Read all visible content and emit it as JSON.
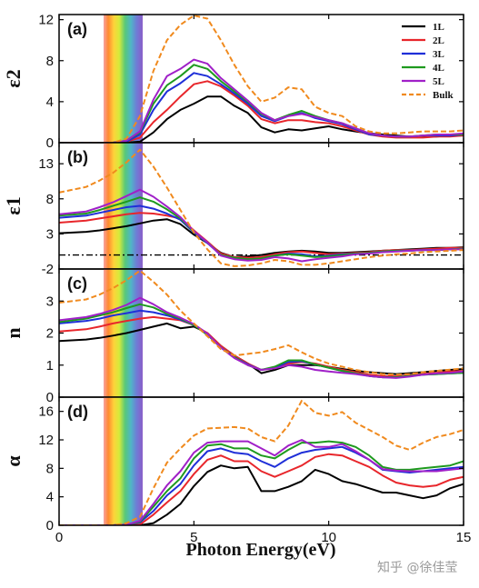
{
  "watermark": "知乎 @徐佳莹",
  "chart_data": {
    "type": "line",
    "xlabel": "Photon Energy(eV)",
    "xlim": [
      0,
      15
    ],
    "xticks": [
      0,
      5,
      10,
      15
    ],
    "visible_band_eV": [
      1.65,
      3.1
    ],
    "series_styles": [
      {
        "name": "1L",
        "color": "#000000",
        "dash": "solid"
      },
      {
        "name": "2L",
        "color": "#e8262b",
        "dash": "solid"
      },
      {
        "name": "3L",
        "color": "#1f2fd8",
        "dash": "solid"
      },
      {
        "name": "4L",
        "color": "#1e9a1e",
        "dash": "solid"
      },
      {
        "name": "5L",
        "color": "#a020c8",
        "dash": "solid"
      },
      {
        "name": "Bulk",
        "color": "#f08a1e",
        "dash": "dashed"
      }
    ],
    "legend_position": "top-right",
    "panels": [
      {
        "label": "(a)",
        "ylabel": "ε2",
        "ylim": [
          0,
          12.5
        ],
        "yticks": [
          0,
          4,
          8,
          12
        ],
        "x": [
          0,
          1,
          1.5,
          2,
          2.5,
          3,
          3.5,
          4,
          4.5,
          5,
          5.5,
          6,
          6.5,
          7,
          7.5,
          8,
          8.5,
          9,
          9.5,
          10,
          10.5,
          11,
          11.5,
          12,
          12.5,
          13,
          13.5,
          14,
          14.5,
          15
        ],
        "series": [
          {
            "name": "1L",
            "values": [
              0,
              0,
              0,
              0,
              0,
              0.1,
              1.0,
              2.3,
              3.2,
              3.8,
              4.5,
              4.5,
              3.6,
              2.9,
              1.5,
              1.0,
              1.3,
              1.2,
              1.4,
              1.6,
              1.3,
              1.1,
              0.9,
              0.8,
              0.7,
              0.6,
              0.6,
              0.6,
              0.7,
              0.7
            ]
          },
          {
            "name": "2L",
            "values": [
              0,
              0,
              0,
              0,
              0.1,
              0.5,
              2.0,
              3.2,
              4.5,
              5.7,
              6.0,
              5.5,
              4.6,
              3.6,
              2.3,
              1.9,
              2.2,
              2.2,
              2.0,
              1.9,
              1.6,
              1.2,
              0.8,
              0.6,
              0.5,
              0.5,
              0.5,
              0.6,
              0.6,
              0.7
            ]
          },
          {
            "name": "3L",
            "values": [
              0,
              0,
              0,
              0,
              0.1,
              0.8,
              3.2,
              5.0,
              5.8,
              6.8,
              6.5,
              5.7,
              4.8,
              3.8,
              2.6,
              2.1,
              2.6,
              2.9,
              2.4,
              2.1,
              1.8,
              1.3,
              0.8,
              0.7,
              0.6,
              0.6,
              0.7,
              0.7,
              0.7,
              0.8
            ]
          },
          {
            "name": "4L",
            "values": [
              0,
              0,
              0,
              0,
              0.2,
              1.0,
              3.8,
              5.6,
              6.5,
              7.6,
              7.2,
              6.0,
              5.0,
              4.0,
              2.8,
              2.2,
              2.7,
              3.1,
              2.6,
              2.2,
              1.9,
              1.4,
              0.9,
              0.7,
              0.6,
              0.6,
              0.7,
              0.8,
              0.8,
              0.8
            ]
          },
          {
            "name": "5L",
            "values": [
              0,
              0,
              0,
              0,
              0.2,
              1.1,
              4.2,
              6.5,
              7.2,
              8.1,
              7.7,
              6.3,
              5.2,
              4.1,
              2.9,
              2.2,
              2.6,
              2.8,
              2.5,
              2.2,
              1.9,
              1.4,
              0.9,
              0.7,
              0.6,
              0.6,
              0.7,
              0.8,
              0.8,
              0.9
            ]
          },
          {
            "name": "Bulk",
            "values": [
              0,
              0,
              0,
              0,
              0.4,
              2.6,
              7.0,
              10.0,
              11.5,
              12.4,
              12.1,
              10.0,
              7.6,
              5.5,
              4.0,
              4.4,
              5.4,
              5.2,
              3.5,
              2.9,
              2.6,
              1.6,
              1.1,
              0.9,
              0.9,
              1.0,
              1.1,
              1.1,
              1.1,
              1.2
            ]
          }
        ]
      },
      {
        "label": "(b)",
        "ylabel": "ε1",
        "ylim": [
          -2,
          16
        ],
        "yticks": [
          -2,
          3,
          8,
          13
        ],
        "reference_line_y": 0,
        "x": [
          0,
          1,
          1.5,
          2,
          2.5,
          3,
          3.5,
          4,
          4.5,
          5,
          5.5,
          6,
          6.5,
          7,
          7.5,
          8,
          8.5,
          9,
          9.5,
          10,
          10.5,
          11,
          11.5,
          12,
          12.5,
          13,
          13.5,
          14,
          14.5,
          15
        ],
        "series": [
          {
            "name": "1L",
            "values": [
              3.1,
              3.3,
              3.5,
              3.8,
              4.1,
              4.5,
              4.9,
              5.1,
              4.4,
              2.9,
              1.7,
              0.3,
              -0.3,
              -0.2,
              0.0,
              0.3,
              0.5,
              0.6,
              0.5,
              0.3,
              0.3,
              0.4,
              0.5,
              0.6,
              0.7,
              0.8,
              0.9,
              1.0,
              1.0,
              1.1
            ]
          },
          {
            "name": "2L",
            "values": [
              4.6,
              4.9,
              5.2,
              5.5,
              5.8,
              6.0,
              5.9,
              5.6,
              5.2,
              3.5,
              1.9,
              0.2,
              -0.3,
              -0.4,
              -0.3,
              0.1,
              0.4,
              0.5,
              0.3,
              0.1,
              0.2,
              0.3,
              0.4,
              0.6,
              0.7,
              0.7,
              0.8,
              0.9,
              1.0,
              1.0
            ]
          },
          {
            "name": "3L",
            "values": [
              5.3,
              5.6,
              6.0,
              6.4,
              6.8,
              7.0,
              6.6,
              5.9,
              5.0,
              3.2,
              1.7,
              0.0,
              -0.4,
              -0.6,
              -0.5,
              -0.1,
              0.2,
              0.1,
              -0.2,
              -0.1,
              0.1,
              0.2,
              0.3,
              0.5,
              0.6,
              0.6,
              0.7,
              0.7,
              0.8,
              0.9
            ]
          },
          {
            "name": "4L",
            "values": [
              5.6,
              5.9,
              6.4,
              7.0,
              7.6,
              8.2,
              7.6,
              6.5,
              5.2,
              3.3,
              1.8,
              0.0,
              -0.4,
              -0.6,
              -0.5,
              -0.1,
              0.1,
              -0.1,
              -0.3,
              -0.2,
              0.0,
              0.2,
              0.3,
              0.5,
              0.6,
              0.6,
              0.7,
              0.7,
              0.8,
              0.9
            ]
          },
          {
            "name": "5L",
            "values": [
              5.8,
              6.2,
              6.8,
              7.5,
              8.4,
              9.3,
              8.3,
              6.9,
              5.4,
              3.4,
              1.8,
              -0.1,
              -0.6,
              -0.8,
              -0.7,
              -0.3,
              -0.5,
              -0.9,
              -0.6,
              -0.4,
              -0.2,
              0.1,
              0.2,
              0.4,
              0.5,
              0.6,
              0.7,
              0.7,
              0.8,
              0.8
            ]
          },
          {
            "name": "Bulk",
            "values": [
              8.9,
              9.7,
              10.6,
              11.7,
              13.2,
              15.0,
              12.6,
              9.6,
              6.4,
              3.2,
              0.8,
              -1.2,
              -1.6,
              -1.5,
              -1.2,
              -0.7,
              -0.9,
              -1.4,
              -1.4,
              -1.2,
              -0.9,
              -0.6,
              -0.3,
              -0.1,
              0.1,
              0.2,
              0.4,
              0.5,
              0.6,
              0.7
            ]
          }
        ]
      },
      {
        "label": "(c)",
        "ylabel": "n",
        "ylim": [
          0,
          4
        ],
        "yticks": [
          0,
          1,
          2,
          3
        ],
        "x": [
          0,
          1,
          1.5,
          2,
          2.5,
          3,
          3.5,
          4,
          4.5,
          5,
          5.5,
          6,
          6.5,
          7,
          7.5,
          8,
          8.5,
          9,
          9.5,
          10,
          10.5,
          11,
          11.5,
          12,
          12.5,
          13,
          13.5,
          14,
          14.5,
          15
        ],
        "series": [
          {
            "name": "1L",
            "values": [
              1.75,
              1.8,
              1.85,
              1.92,
              2.0,
              2.1,
              2.2,
              2.3,
              2.15,
              2.2,
              2.0,
              1.6,
              1.3,
              1.05,
              0.75,
              0.85,
              1.0,
              1.0,
              1.0,
              0.95,
              0.88,
              0.82,
              0.78,
              0.75,
              0.72,
              0.75,
              0.78,
              0.82,
              0.85,
              0.88
            ]
          },
          {
            "name": "2L",
            "values": [
              2.05,
              2.12,
              2.2,
              2.3,
              2.38,
              2.45,
              2.5,
              2.45,
              2.4,
              2.25,
              2.0,
              1.6,
              1.3,
              1.05,
              0.85,
              0.9,
              1.05,
              1.1,
              1.05,
              0.95,
              0.85,
              0.78,
              0.7,
              0.66,
              0.65,
              0.68,
              0.72,
              0.76,
              0.8,
              0.82
            ]
          },
          {
            "name": "3L",
            "values": [
              2.3,
              2.38,
              2.45,
              2.55,
              2.62,
              2.7,
              2.65,
              2.55,
              2.42,
              2.25,
              1.95,
              1.55,
              1.25,
              1.02,
              0.85,
              0.92,
              1.1,
              1.12,
              1.02,
              0.92,
              0.82,
              0.74,
              0.66,
              0.62,
              0.62,
              0.66,
              0.7,
              0.72,
              0.74,
              0.76
            ]
          },
          {
            "name": "4L",
            "values": [
              2.35,
              2.45,
              2.55,
              2.65,
              2.78,
              2.9,
              2.8,
              2.6,
              2.45,
              2.25,
              1.95,
              1.55,
              1.25,
              1.0,
              0.85,
              0.95,
              1.15,
              1.15,
              1.02,
              0.92,
              0.82,
              0.74,
              0.66,
              0.62,
              0.62,
              0.66,
              0.7,
              0.72,
              0.74,
              0.76
            ]
          },
          {
            "name": "5L",
            "values": [
              2.4,
              2.5,
              2.6,
              2.72,
              2.88,
              3.1,
              2.9,
              2.65,
              2.48,
              2.28,
              1.98,
              1.55,
              1.22,
              1.0,
              0.85,
              0.9,
              1.0,
              0.95,
              0.85,
              0.8,
              0.76,
              0.72,
              0.66,
              0.62,
              0.6,
              0.64,
              0.7,
              0.74,
              0.76,
              0.8
            ]
          },
          {
            "name": "Bulk",
            "values": [
              2.95,
              3.05,
              3.2,
              3.4,
              3.65,
              3.95,
              3.6,
              3.2,
              2.7,
              2.3,
              1.9,
              1.5,
              1.3,
              1.35,
              1.4,
              1.5,
              1.62,
              1.4,
              1.2,
              1.05,
              0.95,
              0.85,
              0.78,
              0.72,
              0.7,
              0.72,
              0.78,
              0.82,
              0.86,
              0.9
            ]
          }
        ]
      },
      {
        "label": "(d)",
        "ylabel": "α",
        "ylim": [
          0,
          18
        ],
        "yticks": [
          0,
          4,
          8,
          12,
          16
        ],
        "x": [
          0,
          1,
          1.5,
          2,
          2.5,
          3,
          3.5,
          4,
          4.5,
          5,
          5.5,
          6,
          6.5,
          7,
          7.5,
          8,
          8.5,
          9,
          9.5,
          10,
          10.5,
          11,
          11.5,
          12,
          12.5,
          13,
          13.5,
          14,
          14.5,
          15
        ],
        "series": [
          {
            "name": "1L",
            "values": [
              0,
              0,
              0,
              0,
              0,
              0,
              0.3,
              1.5,
              3.0,
              5.5,
              7.5,
              8.4,
              8.0,
              8.2,
              4.8,
              4.8,
              5.4,
              6.2,
              7.8,
              7.2,
              6.2,
              5.8,
              5.2,
              4.6,
              4.6,
              4.2,
              3.8,
              4.2,
              5.2,
              5.8
            ]
          },
          {
            "name": "2L",
            "values": [
              0,
              0,
              0,
              0,
              0,
              0.1,
              1.5,
              3.2,
              4.8,
              7.2,
              9.2,
              9.8,
              9.0,
              9.0,
              7.6,
              6.8,
              7.6,
              8.4,
              9.6,
              10.0,
              9.8,
              9.0,
              8.2,
              7.0,
              6.0,
              5.6,
              5.4,
              5.6,
              6.4,
              6.8
            ]
          },
          {
            "name": "3L",
            "values": [
              0,
              0,
              0,
              0,
              0.1,
              0.4,
              2.0,
              4.2,
              5.8,
              8.4,
              10.4,
              10.8,
              10.2,
              10.0,
              9.0,
              8.2,
              9.4,
              10.2,
              10.6,
              10.8,
              11.0,
              10.2,
              9.2,
              7.8,
              7.6,
              7.4,
              7.6,
              7.8,
              8.0,
              8.2
            ]
          },
          {
            "name": "4L",
            "values": [
              0,
              0,
              0,
              0,
              0.1,
              0.5,
              2.6,
              4.8,
              6.6,
              9.4,
              11.2,
              11.4,
              10.8,
              10.8,
              9.8,
              9.4,
              10.6,
              11.6,
              11.6,
              11.8,
              11.6,
              11.0,
              9.8,
              8.2,
              7.8,
              7.8,
              8.0,
              8.2,
              8.4,
              9.0
            ]
          },
          {
            "name": "5L",
            "values": [
              0,
              0,
              0,
              0,
              0.1,
              0.6,
              3.0,
              5.6,
              7.6,
              10.2,
              11.6,
              11.8,
              11.8,
              11.8,
              10.8,
              9.8,
              11.2,
              12.0,
              11.0,
              11.0,
              11.4,
              10.4,
              9.2,
              7.9,
              7.7,
              7.6,
              7.6,
              7.6,
              7.8,
              8.0
            ]
          },
          {
            "name": "Bulk",
            "values": [
              0,
              0,
              0,
              0,
              0.3,
              1.2,
              5.2,
              8.8,
              10.8,
              12.6,
              13.6,
              13.7,
              13.8,
              13.6,
              12.4,
              11.8,
              14.0,
              17.5,
              15.8,
              15.4,
              15.9,
              14.4,
              13.4,
              12.4,
              11.2,
              10.6,
              11.6,
              12.4,
              12.8,
              13.4
            ]
          }
        ]
      }
    ]
  }
}
